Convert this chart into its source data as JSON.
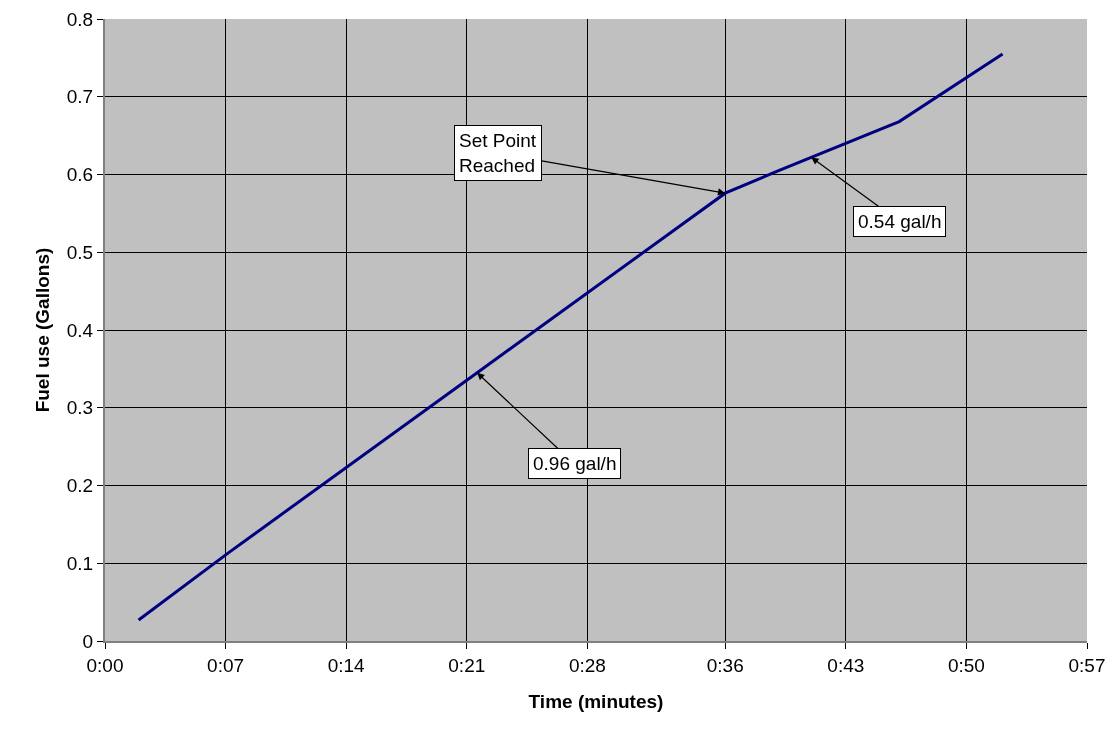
{
  "chart_data": {
    "type": "line",
    "xlabel": "Time (minutes)",
    "ylabel": "Fuel use (Gallons)",
    "x": [
      1.95,
      7.2,
      21.6,
      36.0,
      39.1,
      46.1,
      52.1
    ],
    "series": [
      {
        "color": "#000080",
        "values": [
          0.027,
          0.114,
          0.345,
          0.576,
          0.605,
          0.668,
          0.755
        ]
      }
    ],
    "xlim": [
      0,
      57
    ],
    "xticks": [
      {
        "value": 0,
        "label": "0:00"
      },
      {
        "value": 7,
        "label": "0:07"
      },
      {
        "value": 14,
        "label": "0:14"
      },
      {
        "value": 21,
        "label": "0:21"
      },
      {
        "value": 28,
        "label": "0:28"
      },
      {
        "value": 36,
        "label": "0:36"
      },
      {
        "value": 43,
        "label": "0:43"
      },
      {
        "value": 50,
        "label": "0:50"
      },
      {
        "value": 57,
        "label": "0:57"
      }
    ],
    "ylim": [
      0,
      0.8
    ],
    "yticks": [
      0,
      0.1,
      0.2,
      0.3,
      0.4,
      0.5,
      0.6,
      0.7,
      0.8
    ],
    "grid": true,
    "marker": "none",
    "line_style": "solid",
    "annotations": [
      {
        "text": "Set Point\nReached",
        "x": 36.0,
        "y": 0.576
      },
      {
        "text": "0.54 gal/h",
        "x": 41.0,
        "y": 0.622
      },
      {
        "text": "0.96 gal/h",
        "x": 21.6,
        "y": 0.345
      }
    ]
  }
}
